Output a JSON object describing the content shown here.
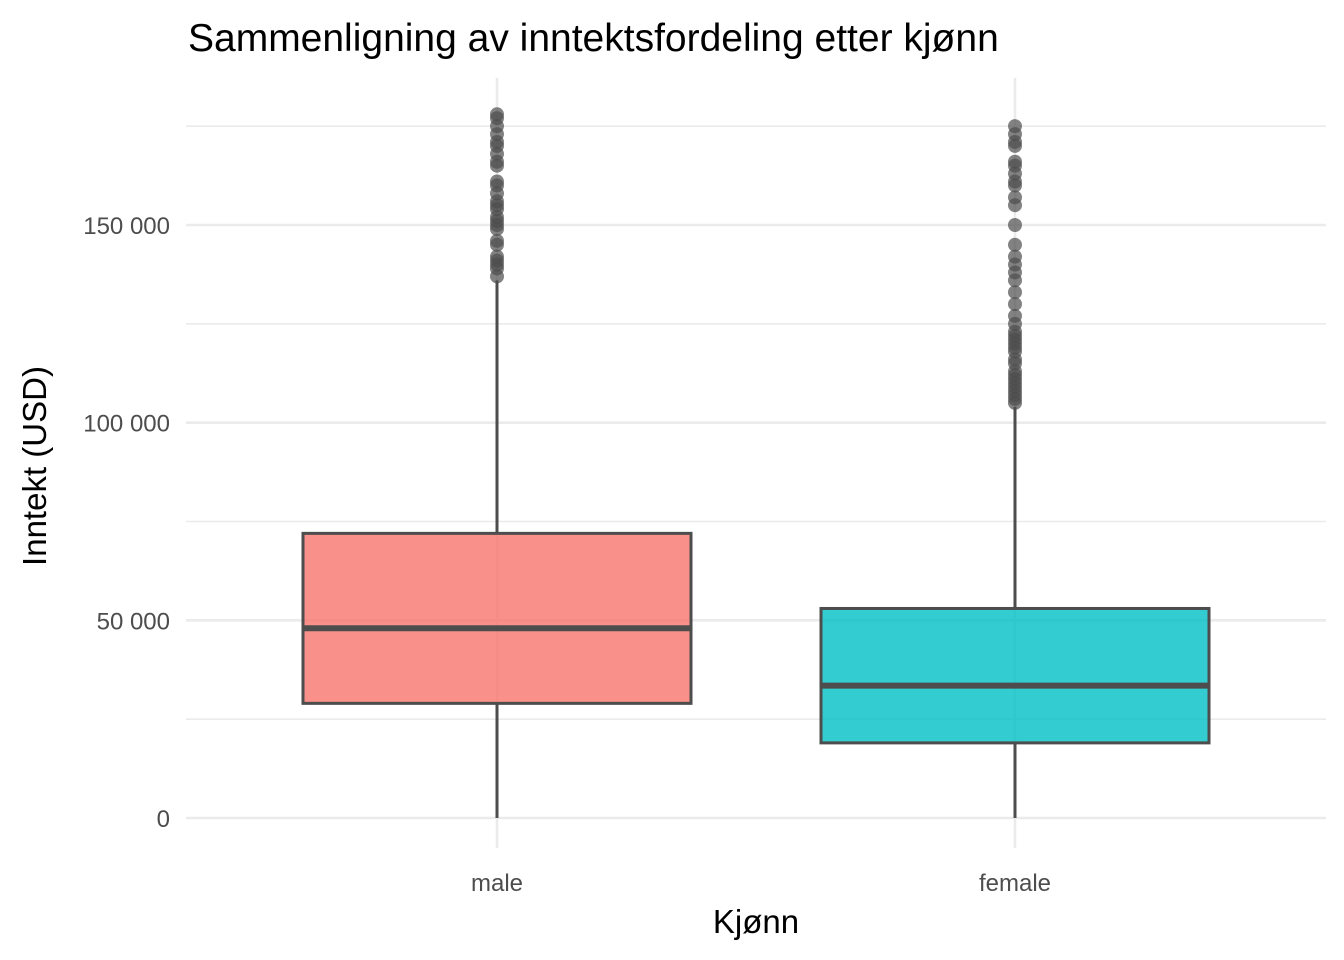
{
  "chart_data": {
    "type": "boxplot",
    "title": "Sammenligning av inntektsfordeling etter kjønn",
    "xlabel": "Kjønn",
    "ylabel": "Inntekt (USD)",
    "categories": [
      "male",
      "female"
    ],
    "ylim": [
      -7000,
      186000
    ],
    "y_ticks": [
      0,
      50000,
      100000,
      150000
    ],
    "y_tick_labels": [
      "0",
      "50 000",
      "100 000",
      "150 000"
    ],
    "grid": true,
    "legend": "none",
    "boxes": [
      {
        "category": "male",
        "color": "#F8766D",
        "min": 0,
        "q1": 29000,
        "median": 48000,
        "q3": 72000,
        "whisker_high": 136000,
        "outliers": [
          137000,
          139000,
          140000,
          141000,
          142000,
          145000,
          146000,
          149000,
          150000,
          151000,
          152000,
          154000,
          155000,
          156000,
          158000,
          160000,
          161000,
          165000,
          166000,
          168000,
          170000,
          171000,
          173000,
          175000,
          177000,
          178000
        ]
      },
      {
        "category": "female",
        "color": "#00BFC4",
        "min": 0,
        "q1": 19000,
        "median": 33500,
        "q3": 53000,
        "whisker_high": 104000,
        "outliers": [
          105000,
          106000,
          107000,
          108000,
          109000,
          110000,
          111000,
          112000,
          113000,
          115000,
          116000,
          118000,
          119000,
          120000,
          121000,
          122000,
          123000,
          125000,
          127000,
          130000,
          133000,
          136000,
          138000,
          140000,
          142000,
          145000,
          150000,
          155000,
          157000,
          160000,
          161000,
          163000,
          165000,
          166000,
          170000,
          171000,
          173000,
          175000
        ]
      }
    ]
  }
}
